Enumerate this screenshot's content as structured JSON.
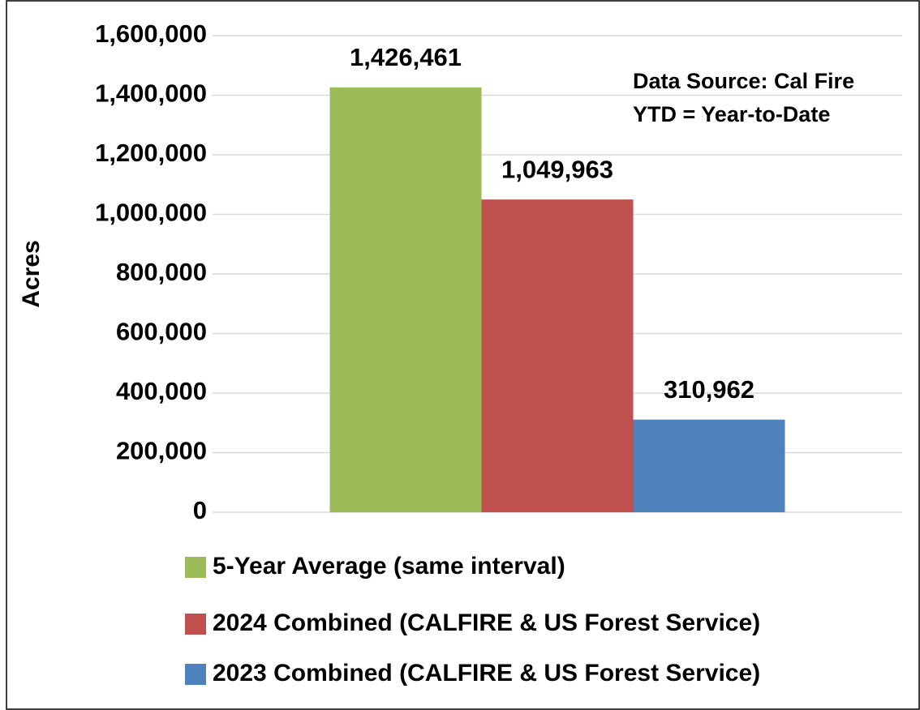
{
  "chart_data": {
    "type": "bar",
    "y_label": "Acres",
    "annotations": [
      "Data Source: Cal Fire",
      "YTD = Year-to-Date"
    ],
    "categories": [
      null
    ],
    "series": [
      {
        "name": "5-Year Average (same interval)",
        "color": "#9bbb59",
        "values": [
          1426461
        ],
        "value_labels": [
          "1,426,461"
        ]
      },
      {
        "name": "2024 Combined (CALFIRE & US Forest Service)",
        "color": "#c0504d",
        "values": [
          1049963
        ],
        "value_labels": [
          "1,049,963"
        ]
      },
      {
        "name": "2023 Combined (CALFIRE & US Forest Service)",
        "color": "#4f81bd",
        "values": [
          310962
        ],
        "value_labels": [
          "310,962"
        ]
      }
    ],
    "ylim": [
      0,
      1600000
    ],
    "yticks": [
      0,
      {
        "value": 200000,
        "label": "200,000"
      },
      {
        "value": 400000,
        "label": "400,000"
      },
      {
        "value": 600000,
        "label": "600,000"
      },
      {
        "value": 800000,
        "label": "800,000"
      },
      {
        "value": 1000000,
        "label": "1,000,000"
      },
      {
        "value": 1200000,
        "label": "1,200,000"
      },
      {
        "value": 1400000,
        "label": "1,400,000"
      },
      {
        "value": 1600000,
        "label": "1,600,000"
      }
    ],
    "grid": true,
    "legend": "bottom"
  }
}
